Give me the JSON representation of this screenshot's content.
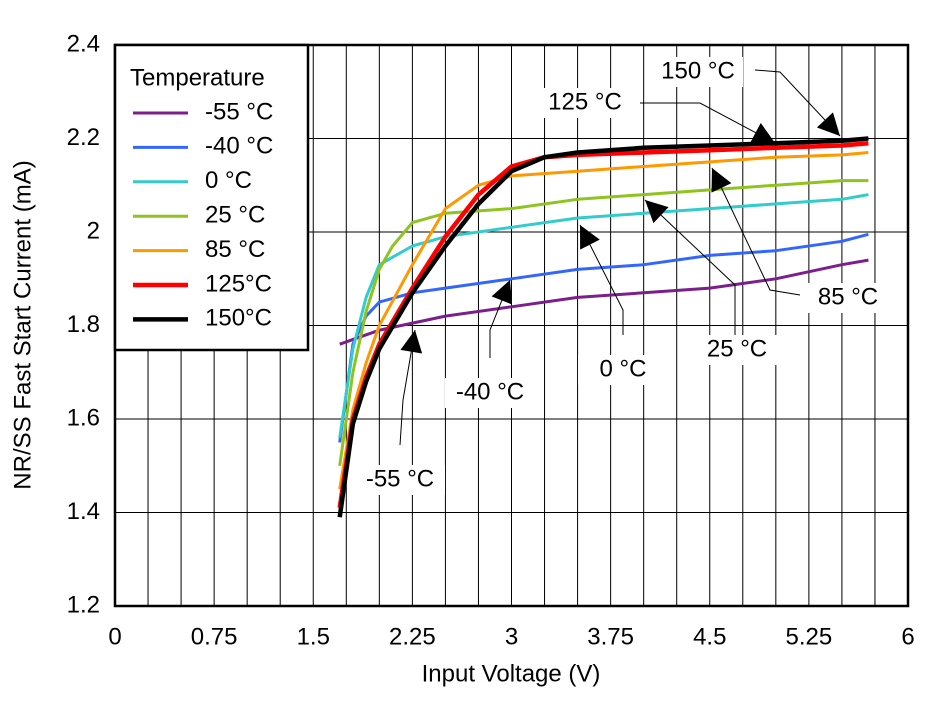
{
  "chart_data": {
    "type": "line",
    "xlabel": "Input Voltage (V)",
    "ylabel": "NR/SS Fast Start Current (mA)",
    "xlim": [
      0,
      6
    ],
    "xticks": [
      0,
      0.75,
      1.5,
      2.25,
      3,
      3.75,
      4.5,
      5.25,
      6
    ],
    "xminorticks": [
      0.25,
      0.5,
      1,
      1.25,
      1.75,
      2,
      2.5,
      2.75,
      3.25,
      3.5,
      4,
      4.25,
      4.75,
      5,
      5.5,
      5.75
    ],
    "ylim": [
      1.2,
      2.4
    ],
    "yticks": [
      1.2,
      1.4,
      1.6,
      1.8,
      2,
      2.2,
      2.4
    ],
    "grid": true,
    "legend_title": "Temperature",
    "legend_position": "upper left",
    "series": [
      {
        "name": "-55 °C",
        "color": "#7b1f8a",
        "x": [
          1.7,
          2.0,
          2.5,
          3,
          3.5,
          4,
          4.5,
          5,
          5.5,
          5.7
        ],
        "values": [
          1.76,
          1.79,
          1.82,
          1.84,
          1.86,
          1.87,
          1.88,
          1.9,
          1.93,
          1.94
        ]
      },
      {
        "name": "-40 °C",
        "color": "#3366ff",
        "x": [
          1.7,
          1.8,
          1.9,
          2.0,
          2.25,
          2.5,
          3,
          3.5,
          4,
          4.5,
          5,
          5.5,
          5.7
        ],
        "values": [
          1.55,
          1.76,
          1.82,
          1.85,
          1.87,
          1.88,
          1.9,
          1.92,
          1.93,
          1.95,
          1.96,
          1.98,
          1.995
        ]
      },
      {
        "name": "0 °C",
        "color": "#33cccc",
        "x": [
          1.7,
          1.8,
          1.9,
          2.0,
          2.25,
          2.5,
          3,
          3.5,
          4,
          4.5,
          5,
          5.5,
          5.7
        ],
        "values": [
          1.56,
          1.75,
          1.86,
          1.93,
          1.97,
          1.99,
          2.01,
          2.03,
          2.04,
          2.05,
          2.06,
          2.07,
          2.08
        ]
      },
      {
        "name": "25 °C",
        "color": "#8fc31f",
        "x": [
          1.7,
          1.8,
          1.9,
          2.0,
          2.1,
          2.25,
          2.5,
          3,
          3.5,
          4,
          4.5,
          5,
          5.5,
          5.7
        ],
        "values": [
          1.5,
          1.7,
          1.83,
          1.92,
          1.97,
          2.02,
          2.04,
          2.05,
          2.07,
          2.08,
          2.09,
          2.1,
          2.11,
          2.11
        ]
      },
      {
        "name": "85 °C",
        "color": "#ff9900",
        "x": [
          1.7,
          1.8,
          1.9,
          2.0,
          2.25,
          2.5,
          2.75,
          3,
          3.5,
          4,
          4.5,
          5,
          5.5,
          5.7
        ],
        "values": [
          1.45,
          1.62,
          1.72,
          1.8,
          1.93,
          2.05,
          2.1,
          2.12,
          2.13,
          2.14,
          2.15,
          2.16,
          2.165,
          2.17
        ]
      },
      {
        "name": "125°C",
        "color": "#ff0000",
        "x": [
          1.7,
          1.8,
          1.9,
          2.0,
          2.25,
          2.5,
          2.75,
          3,
          3.25,
          3.5,
          4,
          4.5,
          5,
          5.5,
          5.7
        ],
        "values": [
          1.41,
          1.6,
          1.69,
          1.76,
          1.88,
          1.99,
          2.08,
          2.14,
          2.16,
          2.165,
          2.17,
          2.175,
          2.18,
          2.185,
          2.19
        ]
      },
      {
        "name": "150°C",
        "color": "#000000",
        "x": [
          1.7,
          1.8,
          1.9,
          2.0,
          2.25,
          2.5,
          2.75,
          3,
          3.25,
          3.5,
          4,
          4.5,
          5,
          5.5,
          5.7
        ],
        "values": [
          1.39,
          1.59,
          1.68,
          1.75,
          1.87,
          1.97,
          2.06,
          2.13,
          2.16,
          2.17,
          2.18,
          2.185,
          2.19,
          2.195,
          2.2
        ]
      }
    ],
    "annotations": [
      "150 °C",
      "125 °C",
      "85 °C",
      "25 °C",
      "0 °C",
      "-40 °C",
      "-55 °C"
    ]
  }
}
